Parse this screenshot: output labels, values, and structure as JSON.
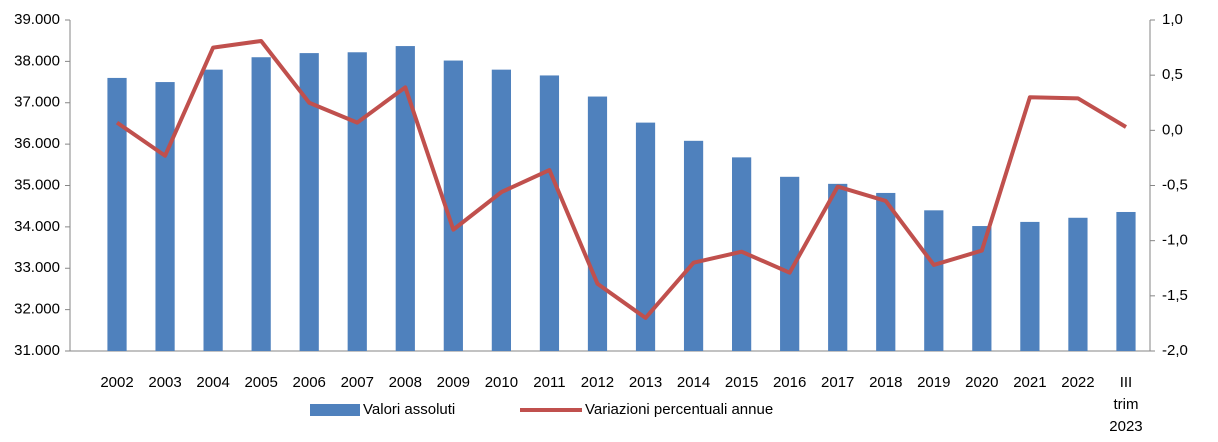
{
  "chart_data": {
    "type": "bar_line",
    "categories": [
      "2002",
      "2003",
      "2004",
      "2005",
      "2006",
      "2007",
      "2008",
      "2009",
      "2010",
      "2011",
      "2012",
      "2013",
      "2014",
      "2015",
      "2016",
      "2017",
      "2018",
      "2019",
      "2020",
      "2021",
      "2022",
      "III trim 2023"
    ],
    "series": [
      {
        "name": "Valori assoluti",
        "type": "bar",
        "color": "#4f81bd",
        "axis": "y",
        "values": [
          37600,
          37500,
          37800,
          38100,
          38200,
          38220,
          38370,
          38020,
          37800,
          37660,
          37150,
          36520,
          36080,
          35680,
          35210,
          35040,
          34820,
          34400,
          34020,
          34120,
          34220,
          34360
        ]
      },
      {
        "name": "Variazioni percentuali annue",
        "type": "line",
        "color": "#c0504d",
        "axis": "y2",
        "values": [
          0.07,
          -0.23,
          0.75,
          0.81,
          0.25,
          0.07,
          0.39,
          -0.9,
          -0.56,
          -0.36,
          -1.39,
          -1.7,
          -1.2,
          -1.1,
          -1.29,
          -0.51,
          -0.64,
          -1.22,
          -1.09,
          0.3,
          0.29,
          0.03
        ]
      }
    ],
    "ylim": [
      31000,
      39000
    ],
    "yticks": [
      {
        "value": 31000,
        "label": "31.000"
      },
      {
        "value": 32000,
        "label": "32.000"
      },
      {
        "value": 33000,
        "label": "33.000"
      },
      {
        "value": 34000,
        "label": "34.000"
      },
      {
        "value": 35000,
        "label": "35.000"
      },
      {
        "value": 36000,
        "label": "36.000"
      },
      {
        "value": 37000,
        "label": "37.000"
      },
      {
        "value": 38000,
        "label": "38.000"
      },
      {
        "value": 39000,
        "label": "39.000"
      }
    ],
    "y2lim": [
      -2.0,
      1.0
    ],
    "y2ticks": [
      {
        "value": -2.0,
        "label": "-2,0"
      },
      {
        "value": -1.5,
        "label": "-1,5"
      },
      {
        "value": -1.0,
        "label": "-1,0"
      },
      {
        "value": -0.5,
        "label": "-0,5"
      },
      {
        "value": 0.0,
        "label": "0,0"
      },
      {
        "value": 0.5,
        "label": "0,5"
      },
      {
        "value": 1.0,
        "label": "1,0"
      }
    ],
    "grid": false,
    "legend": "bottom"
  }
}
